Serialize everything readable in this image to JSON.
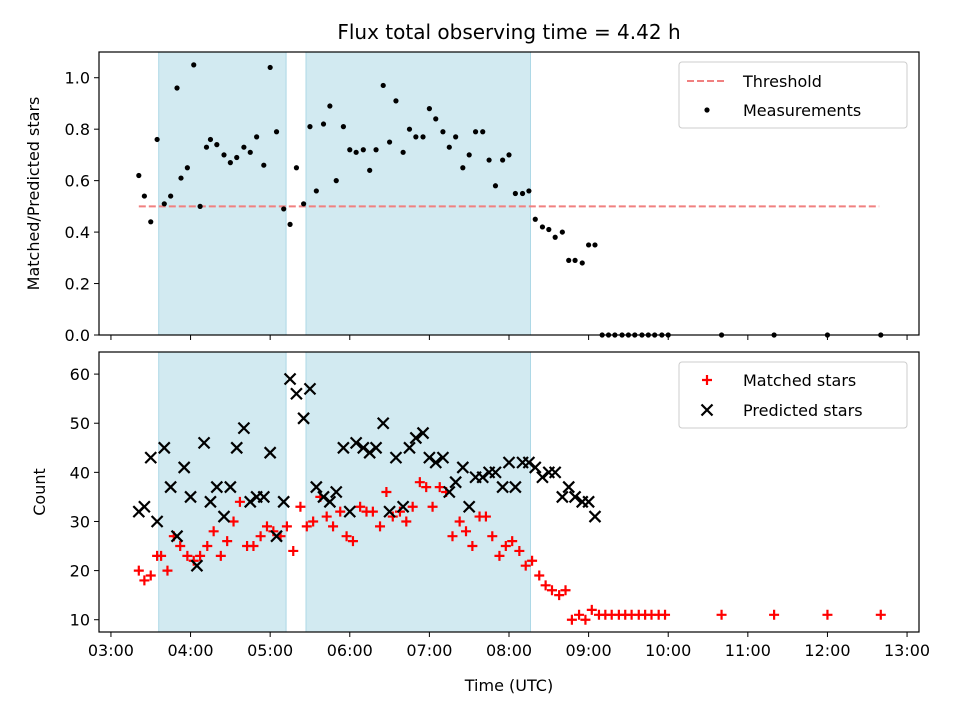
{
  "chart_data": {
    "title": "Flux total observing time = 4.42 h",
    "xlabel": "Time (UTC)",
    "x_tick_labels": [
      "03:00",
      "04:00",
      "05:00",
      "06:00",
      "07:00",
      "08:00",
      "09:00",
      "10:00",
      "11:00",
      "12:00",
      "13:00"
    ],
    "x_tick_values": [
      3,
      4,
      5,
      6,
      7,
      8,
      9,
      10,
      11,
      12,
      13
    ],
    "xlim": [
      2.85,
      13.15
    ],
    "shaded_intervals": [
      [
        3.6,
        5.2
      ],
      [
        5.45,
        8.27
      ]
    ],
    "shade_color": "#add8e6",
    "panels": [
      {
        "type": "scatter",
        "ylabel": "Matched/Predicted stars",
        "ylim": [
          0,
          1.1
        ],
        "y_ticks": [
          0.0,
          0.2,
          0.4,
          0.6,
          0.8,
          1.0
        ],
        "y_tick_labels": [
          "0.0",
          "0.2",
          "0.4",
          "0.6",
          "0.8",
          "1.0"
        ],
        "legend": {
          "position": "top-right",
          "entries": [
            "Threshold",
            "Measurements"
          ]
        },
        "threshold": {
          "name": "Threshold",
          "y": 0.5,
          "x_range": [
            3.35,
            12.65
          ],
          "color": "#f08080"
        },
        "measurements": {
          "name": "Measurements",
          "color": "#000000",
          "x": [
            3.35,
            3.42,
            3.5,
            3.58,
            3.67,
            3.75,
            3.83,
            3.88,
            3.96,
            4.04,
            4.12,
            4.2,
            4.25,
            4.33,
            4.42,
            4.5,
            4.58,
            4.67,
            4.75,
            4.83,
            4.92,
            5.0,
            5.08,
            5.17,
            5.25,
            5.33,
            5.42,
            5.5,
            5.58,
            5.67,
            5.75,
            5.83,
            5.92,
            6.0,
            6.08,
            6.17,
            6.25,
            6.33,
            6.42,
            6.5,
            6.58,
            6.67,
            6.75,
            6.83,
            6.92,
            7.0,
            7.08,
            7.17,
            7.25,
            7.33,
            7.42,
            7.5,
            7.58,
            7.67,
            7.75,
            7.83,
            7.92,
            8.0,
            8.08,
            8.17,
            8.25,
            8.33,
            8.42,
            8.5,
            8.58,
            8.67,
            8.75,
            8.83,
            8.92,
            9.0,
            9.08,
            9.17,
            9.25,
            9.33,
            9.42,
            9.5,
            9.58,
            9.67,
            9.75,
            9.83,
            9.92,
            10.0,
            10.67,
            11.33,
            12.0,
            12.67
          ],
          "y": [
            0.62,
            0.54,
            0.44,
            0.76,
            0.51,
            0.54,
            0.96,
            0.61,
            0.65,
            1.05,
            0.5,
            0.73,
            0.76,
            0.74,
            0.7,
            0.67,
            0.69,
            0.73,
            0.71,
            0.77,
            0.66,
            1.04,
            0.79,
            0.49,
            0.43,
            0.65,
            0.51,
            0.81,
            0.56,
            0.82,
            0.89,
            0.6,
            0.81,
            0.72,
            0.71,
            0.72,
            0.64,
            0.72,
            0.97,
            0.75,
            0.91,
            0.71,
            0.8,
            0.77,
            0.77,
            0.88,
            0.84,
            0.79,
            0.73,
            0.77,
            0.65,
            0.7,
            0.79,
            0.79,
            0.68,
            0.58,
            0.68,
            0.7,
            0.55,
            0.55,
            0.56,
            0.45,
            0.42,
            0.41,
            0.38,
            0.4,
            0.29,
            0.29,
            0.28,
            0.35,
            0.35,
            0,
            0,
            0,
            0,
            0,
            0,
            0,
            0,
            0,
            0,
            0,
            0,
            0,
            0,
            0
          ]
        }
      },
      {
        "type": "scatter",
        "ylabel": "Count",
        "ylim": [
          7.5,
          64.5
        ],
        "y_ticks": [
          10,
          20,
          30,
          40,
          50,
          60
        ],
        "y_tick_labels": [
          "10",
          "20",
          "30",
          "40",
          "50",
          "60"
        ],
        "legend": {
          "position": "top-right",
          "entries": [
            "Matched stars",
            "Predicted stars"
          ]
        },
        "series": [
          {
            "name": "Matched stars",
            "marker": "+",
            "color": "#ff0000",
            "x": [
              3.35,
              3.42,
              3.5,
              3.58,
              3.63,
              3.71,
              3.79,
              3.87,
              3.96,
              4.04,
              4.12,
              4.21,
              4.29,
              4.38,
              4.46,
              4.54,
              4.62,
              4.71,
              4.79,
              4.88,
              4.96,
              5.04,
              5.13,
              5.21,
              5.29,
              5.38,
              5.46,
              5.54,
              5.63,
              5.71,
              5.79,
              5.88,
              5.96,
              6.04,
              6.13,
              6.21,
              6.29,
              6.38,
              6.46,
              6.54,
              6.63,
              6.71,
              6.79,
              6.88,
              6.96,
              7.04,
              7.13,
              7.21,
              7.29,
              7.38,
              7.46,
              7.54,
              7.63,
              7.71,
              7.79,
              7.88,
              7.96,
              8.04,
              8.13,
              8.21,
              8.29,
              8.38,
              8.46,
              8.54,
              8.63,
              8.71,
              8.79,
              8.88,
              8.96,
              9.04,
              9.13,
              9.21,
              9.29,
              9.38,
              9.46,
              9.54,
              9.63,
              9.71,
              9.79,
              9.88,
              9.96,
              10.67,
              11.33,
              12.0,
              12.67
            ],
            "y": [
              20,
              18,
              19,
              23,
              23,
              20,
              27,
              25,
              23,
              22,
              23,
              25,
              28,
              23,
              26,
              30,
              34,
              25,
              25,
              27,
              29,
              28,
              27,
              29,
              24,
              33,
              29,
              30,
              35,
              31,
              29,
              32,
              27,
              26,
              33,
              32,
              32,
              29,
              36,
              31,
              32,
              30,
              33,
              38,
              37,
              33,
              37,
              36,
              27,
              30,
              28,
              25,
              31,
              31,
              27,
              23,
              25,
              26,
              24,
              21,
              22,
              19,
              17,
              16,
              15,
              16,
              10,
              11,
              10,
              12,
              11,
              11,
              11,
              11,
              11,
              11,
              11,
              11,
              11,
              11,
              11,
              11,
              11,
              11,
              11
            ]
          },
          {
            "name": "Predicted stars",
            "marker": "x",
            "color": "#000000",
            "x": [
              3.35,
              3.42,
              3.5,
              3.58,
              3.67,
              3.75,
              3.83,
              3.92,
              4.0,
              4.08,
              4.17,
              4.25,
              4.33,
              4.42,
              4.5,
              4.58,
              4.67,
              4.75,
              4.83,
              4.92,
              5.0,
              5.08,
              5.17,
              5.25,
              5.33,
              5.42,
              5.5,
              5.58,
              5.67,
              5.75,
              5.83,
              5.92,
              6.0,
              6.08,
              6.17,
              6.25,
              6.33,
              6.42,
              6.5,
              6.58,
              6.67,
              6.75,
              6.83,
              6.92,
              7.0,
              7.08,
              7.17,
              7.25,
              7.33,
              7.42,
              7.5,
              7.58,
              7.67,
              7.75,
              7.83,
              7.92,
              8.0,
              8.08,
              8.17,
              8.25,
              8.33,
              8.42,
              8.5,
              8.58,
              8.67,
              8.75,
              8.83,
              8.92,
              9.0,
              9.08
            ],
            "y": [
              32,
              33,
              43,
              30,
              45,
              37,
              27,
              41,
              35,
              21,
              46,
              34,
              37,
              31,
              37,
              45,
              49,
              34,
              35,
              35,
              44,
              27,
              34,
              59,
              56,
              51,
              57,
              37,
              35,
              34,
              36,
              45,
              32,
              46,
              45,
              44,
              45,
              50,
              32,
              43,
              33,
              45,
              47,
              48,
              43,
              42,
              43,
              36,
              38,
              41,
              33,
              39,
              39,
              40,
              40,
              37,
              42,
              37,
              42,
              42,
              41,
              39,
              40,
              40,
              35,
              37,
              35,
              34,
              34,
              31
            ]
          }
        ]
      }
    ]
  }
}
